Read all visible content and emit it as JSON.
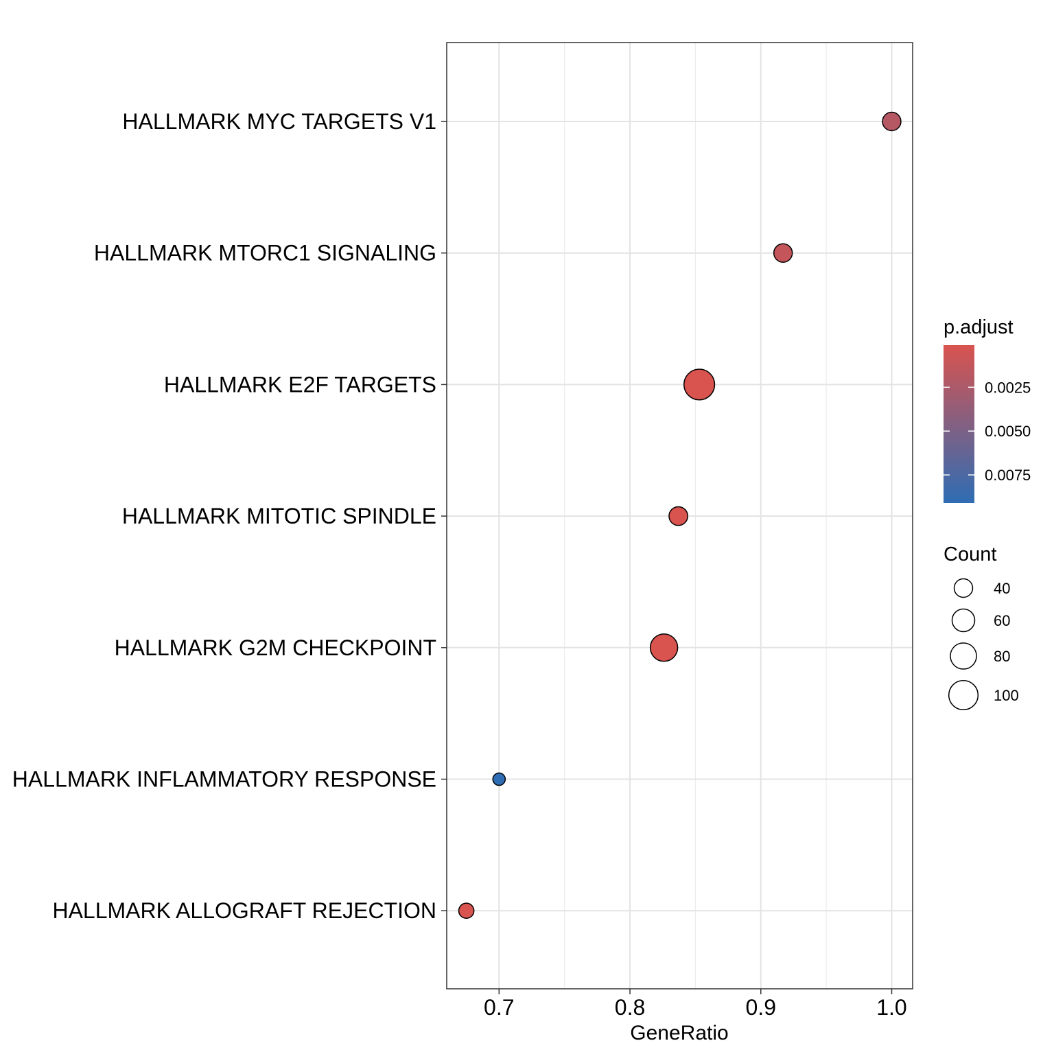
{
  "chart_data": {
    "type": "scatter",
    "subtype": "dotplot",
    "xlabel": "GeneRatio",
    "ylabel": "",
    "xlim": [
      0.66,
      1.016
    ],
    "x_ticks": [
      0.7,
      0.8,
      0.9,
      1.0
    ],
    "x_tick_labels": [
      "0.7",
      "0.8",
      "0.9",
      "1.0"
    ],
    "grid": true,
    "categories": [
      "HALLMARK MYC TARGETS V1",
      "HALLMARK MTORC1 SIGNALING",
      "HALLMARK E2F TARGETS",
      "HALLMARK MITOTIC SPINDLE",
      "HALLMARK G2M CHECKPOINT",
      "HALLMARK INFLAMMATORY RESPONSE",
      "HALLMARK ALLOGRAFT REJECTION"
    ],
    "points": [
      {
        "category": "HALLMARK MYC TARGETS V1",
        "gene_ratio": 1.0,
        "count": 40,
        "p_adjust": 0.002
      },
      {
        "category": "HALLMARK MTORC1 SIGNALING",
        "gene_ratio": 0.917,
        "count": 40,
        "p_adjust": 0.0012
      },
      {
        "category": "HALLMARK E2F TARGETS",
        "gene_ratio": 0.853,
        "count": 110,
        "p_adjust": 0.0001
      },
      {
        "category": "HALLMARK MITOTIC SPINDLE",
        "gene_ratio": 0.837,
        "count": 41,
        "p_adjust": 0.0001
      },
      {
        "category": "HALLMARK G2M CHECKPOINT",
        "gene_ratio": 0.826,
        "count": 88,
        "p_adjust": 0.0001
      },
      {
        "category": "HALLMARK INFLAMMATORY RESPONSE",
        "gene_ratio": 0.7,
        "count": 18,
        "p_adjust": 0.0091
      },
      {
        "category": "HALLMARK ALLOGRAFT REJECTION",
        "gene_ratio": 0.675,
        "count": 27,
        "p_adjust": 0.0001
      }
    ],
    "color_legend": {
      "title": "p.adjust",
      "range": [
        0.0001,
        0.0091
      ],
      "low_color": "#D9534F",
      "high_color": "#2E6DB4",
      "ticks": [
        0.0025,
        0.005,
        0.0075
      ],
      "tick_labels": [
        "0.0025",
        "0.0050",
        "0.0075"
      ]
    },
    "size_legend": {
      "title": "Count",
      "values": [
        40,
        60,
        80,
        100
      ],
      "labels": [
        "40",
        "60",
        "80",
        "100"
      ]
    },
    "legend_position": "right"
  }
}
